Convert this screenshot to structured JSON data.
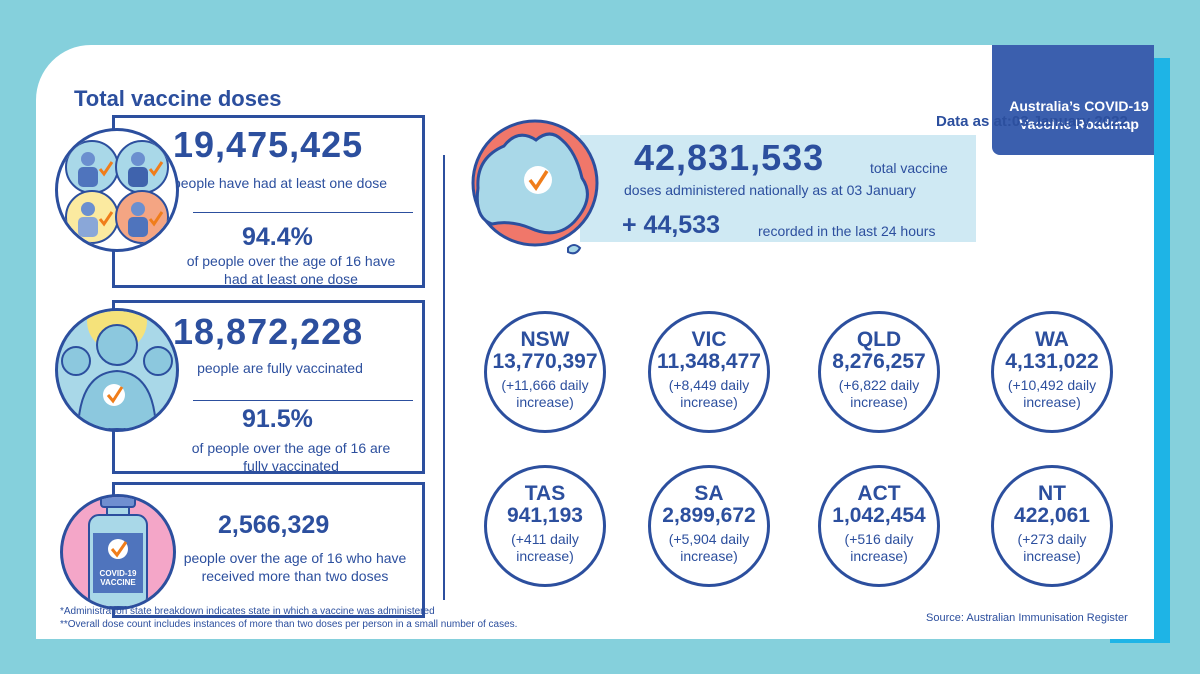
{
  "header": {
    "line1": "Australia’s COVID-19",
    "line2": "Vaccine Roadmap",
    "data_date": "Data as at:03 January 2022"
  },
  "total_section": {
    "title": "Total vaccine doses",
    "one_dose_count": "19,475,425",
    "one_dose_label": "people have had at least one dose",
    "one_dose_pct": "94.4%",
    "one_dose_pct_label": "of people over the age of 16 have had at least one dose",
    "fully_count": "18,872,228",
    "fully_label": "people are fully vaccinated",
    "fully_pct": "91.5%",
    "fully_pct_label": "of people over the age of 16 are fully vaccinated",
    "booster_count": "2,566,329",
    "booster_label": "people over the age of 16 who have received more than two doses",
    "vial_line1": "COVID-19",
    "vial_line2": "VACCINE"
  },
  "national": {
    "total": "42,831,533",
    "total_suffix": "total vaccine",
    "total_label": "doses administered nationally as at 03 January",
    "daily": "+ 44,533",
    "daily_label": "recorded in the last 24 hours"
  },
  "states": [
    {
      "name": "NSW",
      "total": "13,770,397",
      "increase": "(+11,666 daily increase)"
    },
    {
      "name": "VIC",
      "total": "11,348,477",
      "increase": "(+8,449 daily increase)"
    },
    {
      "name": "QLD",
      "total": "8,276,257",
      "increase": "(+6,822 daily increase)"
    },
    {
      "name": "WA",
      "total": "4,131,022",
      "increase": "(+10,492 daily increase)"
    },
    {
      "name": "TAS",
      "total": "941,193",
      "increase": "(+411 daily increase)"
    },
    {
      "name": "SA",
      "total": "2,899,672",
      "increase": "(+5,904 daily increase)"
    },
    {
      "name": "ACT",
      "total": "1,042,454",
      "increase": "(+516 daily increase)"
    },
    {
      "name": "NT",
      "total": "422,061",
      "increase": "(+273 daily increase)"
    }
  ],
  "footnotes": {
    "note1": "*Administration state breakdown indicates state in which a vaccine was administered",
    "note2": "**Overall dose count includes instances of more than two doses per person in a small number of cases.",
    "source": "Source: Australian Immunisation Register"
  },
  "colors": {
    "navy": "#2c4f9e",
    "header_blue": "#3b5fae",
    "teal_bg": "#85d0dc",
    "light_blue": "#cfe9f3",
    "coral": "#f0776a",
    "check_orange": "#f07d1a"
  }
}
